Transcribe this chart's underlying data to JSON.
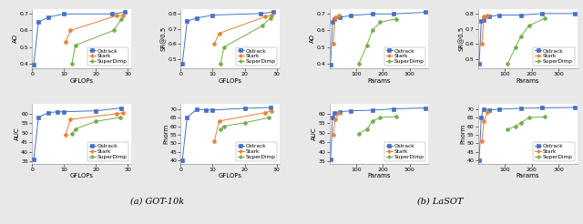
{
  "background_color": "#e8e8e8",
  "plot_bg": "#ffffff",
  "subtitle_a": "(a) GOT-10k",
  "subtitle_b": "(b) LaSOT",
  "colors": {
    "ostrack": "#4472c4",
    "stark": "#ed7d31",
    "superdimp": "#70ad47"
  },
  "got10k": {
    "ao_gflops": {
      "ostrack": {
        "x": [
          0.5,
          2.0,
          5.0,
          10.0,
          25.0,
          29.0
        ],
        "y": [
          0.39,
          0.65,
          0.68,
          0.7,
          0.7,
          0.71
        ]
      },
      "stark": {
        "x": [
          10.5,
          12.0,
          26.5,
          28.5
        ],
        "y": [
          0.53,
          0.6,
          0.69,
          0.69
        ]
      },
      "superdimp": {
        "x": [
          12.5,
          13.5,
          25.5,
          28.0
        ],
        "y": [
          0.4,
          0.51,
          0.6,
          0.67
        ]
      }
    },
    "sr_gflops": {
      "ostrack": {
        "x": [
          0.5,
          2.0,
          5.0,
          10.0,
          25.0,
          29.0
        ],
        "y": [
          0.47,
          0.75,
          0.77,
          0.79,
          0.8,
          0.81
        ]
      },
      "stark": {
        "x": [
          10.5,
          12.0,
          26.5,
          28.5
        ],
        "y": [
          0.6,
          0.67,
          0.78,
          0.79
        ]
      },
      "superdimp": {
        "x": [
          12.5,
          13.5,
          25.5,
          28.0
        ],
        "y": [
          0.47,
          0.58,
          0.72,
          0.77
        ]
      }
    },
    "ao_params": {
      "ostrack": {
        "x": [
          4,
          12,
          20,
          40,
          80,
          160,
          240,
          360
        ],
        "y": [
          0.39,
          0.65,
          0.67,
          0.68,
          0.69,
          0.7,
          0.7,
          0.71
        ]
      },
      "stark": {
        "x": [
          14,
          22,
          36
        ],
        "y": [
          0.52,
          0.68,
          0.69
        ]
      },
      "superdimp": {
        "x": [
          110,
          140,
          160,
          190,
          250
        ],
        "y": [
          0.4,
          0.51,
          0.6,
          0.65,
          0.67
        ]
      }
    },
    "sr_params": {
      "ostrack": {
        "x": [
          4,
          12,
          20,
          40,
          80,
          160,
          240,
          360
        ],
        "y": [
          0.47,
          0.75,
          0.76,
          0.78,
          0.79,
          0.79,
          0.8,
          0.8
        ]
      },
      "stark": {
        "x": [
          14,
          22,
          36
        ],
        "y": [
          0.6,
          0.78,
          0.79
        ]
      },
      "superdimp": {
        "x": [
          110,
          140,
          160,
          190,
          250
        ],
        "y": [
          0.47,
          0.58,
          0.65,
          0.72,
          0.77
        ]
      }
    }
  },
  "lasot": {
    "auc_gflops": {
      "ostrack": {
        "x": [
          0.5,
          2.0,
          5.0,
          8.0,
          10.0,
          20.0,
          28.0
        ],
        "y": [
          36.0,
          58.0,
          60.5,
          61.0,
          61.0,
          61.5,
          63.0
        ]
      },
      "stark": {
        "x": [
          10.5,
          12.0,
          26.5,
          28.5
        ],
        "y": [
          49.0,
          57.0,
          60.0,
          60.5
        ]
      },
      "superdimp": {
        "x": [
          12.5,
          13.5,
          20.0,
          27.5
        ],
        "y": [
          49.5,
          52.0,
          56.0,
          58.0
        ]
      }
    },
    "pnorm_gflops": {
      "ostrack": {
        "x": [
          0.5,
          2.0,
          5.0,
          8.0,
          10.0,
          20.0,
          28.0
        ],
        "y": [
          40.0,
          65.0,
          70.0,
          69.5,
          69.5,
          70.5,
          71.0
        ]
      },
      "stark": {
        "x": [
          10.5,
          12.0,
          26.5,
          28.5
        ],
        "y": [
          51.0,
          63.0,
          68.0,
          69.0
        ]
      },
      "superdimp": {
        "x": [
          12.5,
          13.5,
          20.0,
          27.5
        ],
        "y": [
          58.0,
          60.0,
          62.0,
          65.0
        ]
      }
    },
    "auc_params": {
      "ostrack": {
        "x": [
          4,
          12,
          20,
          40,
          80,
          160,
          240,
          360
        ],
        "y": [
          36.0,
          58.0,
          60.5,
          61.0,
          61.5,
          61.8,
          62.5,
          63.0
        ]
      },
      "stark": {
        "x": [
          14,
          22,
          36
        ],
        "y": [
          49.0,
          57.0,
          60.5
        ]
      },
      "superdimp": {
        "x": [
          110,
          140,
          160,
          190,
          250
        ],
        "y": [
          49.5,
          52.0,
          56.0,
          58.0,
          58.5
        ]
      }
    },
    "pnorm_params": {
      "ostrack": {
        "x": [
          4,
          12,
          20,
          40,
          80,
          160,
          240,
          360
        ],
        "y": [
          40.0,
          65.0,
          70.0,
          69.5,
          70.0,
          70.5,
          70.8,
          71.0
        ]
      },
      "stark": {
        "x": [
          14,
          22,
          36
        ],
        "y": [
          51.0,
          63.0,
          68.5
        ]
      },
      "superdimp": {
        "x": [
          110,
          140,
          160,
          190,
          250
        ],
        "y": [
          58.0,
          60.0,
          62.0,
          65.0,
          65.5
        ]
      }
    }
  },
  "legend_labels": [
    "Ostrack",
    "Stark",
    "SuperDimp"
  ],
  "legend_keys": [
    "ostrack",
    "stark",
    "superdimp"
  ],
  "gflops_xlim": [
    0,
    31
  ],
  "gflops_xticks": [
    0,
    5,
    10,
    15,
    20,
    25,
    30
  ],
  "params_xlim": [
    0,
    370
  ],
  "params_xticks": [
    100,
    200,
    300
  ]
}
